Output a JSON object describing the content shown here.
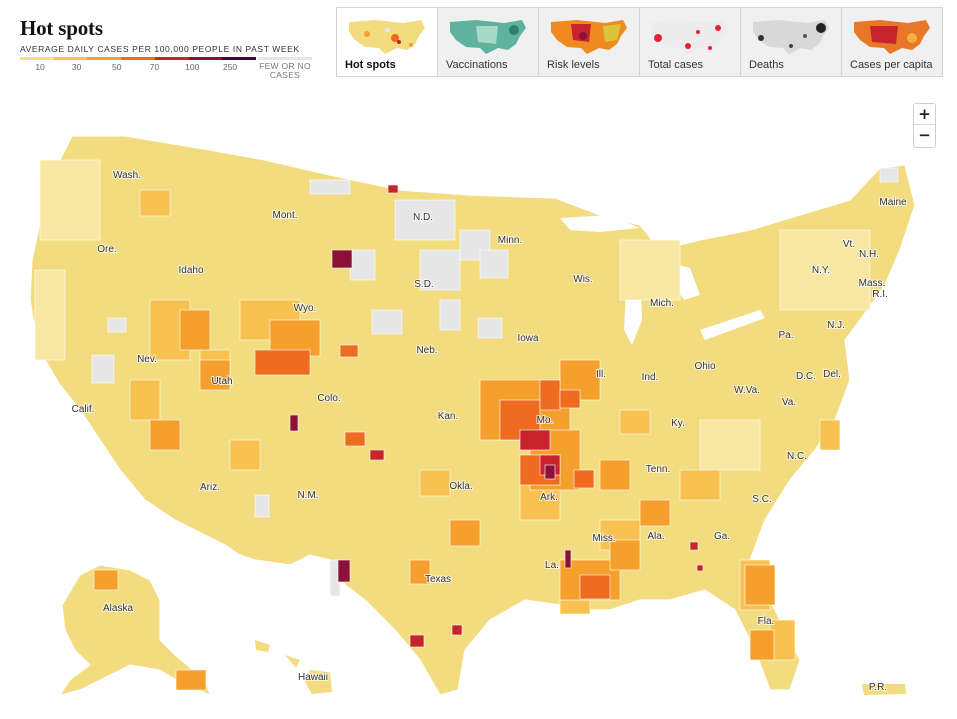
{
  "header": {
    "title": "Hot spots",
    "legend_label": "AVERAGE DAILY CASES PER 100,000 PEOPLE IN PAST WEEK",
    "legend_ticks": [
      "10",
      "30",
      "50",
      "70",
      "100",
      "250"
    ],
    "legend_colors": [
      "#f5e08a",
      "#f8c250",
      "#f59f2c",
      "#ee6b1f",
      "#c8232c",
      "#8b1138",
      "#3d0a3a"
    ],
    "no_cases_label": "FEW OR NO CASES",
    "no_cases_color": "#e6e6e6"
  },
  "tabs": [
    {
      "label": "Hot spots",
      "icon": "hot-spots-map-thumbnail",
      "active": true
    },
    {
      "label": "Vaccinations",
      "icon": "vaccinations-map-thumbnail",
      "active": false
    },
    {
      "label": "Risk levels",
      "icon": "risk-levels-map-thumbnail",
      "active": false
    },
    {
      "label": "Total cases",
      "icon": "total-cases-map-thumbnail",
      "active": false
    },
    {
      "label": "Deaths",
      "icon": "deaths-map-thumbnail",
      "active": false
    },
    {
      "label": "Cases per capita",
      "icon": "cases-per-capita-map-thumbnail",
      "active": false
    }
  ],
  "zoom": {
    "in": "+",
    "out": "−"
  },
  "map": {
    "colors": {
      "land": "#f3db7f",
      "land_light": "#f7e7a3",
      "low": "#f8c250",
      "mid": "#f59f2c",
      "high": "#ee6b1f",
      "very_high": "#c8232c",
      "extreme": "#8b1138",
      "none": "#e6e6e6",
      "water": "#ffffff"
    },
    "labels": [
      {
        "name": "Wash."
      },
      {
        "name": "Ore."
      },
      {
        "name": "Calif."
      },
      {
        "name": "Nev."
      },
      {
        "name": "Idaho"
      },
      {
        "name": "Mont."
      },
      {
        "name": "Wyo."
      },
      {
        "name": "Utah"
      },
      {
        "name": "Ariz."
      },
      {
        "name": "Colo."
      },
      {
        "name": "N.M."
      },
      {
        "name": "N.D."
      },
      {
        "name": "S.D."
      },
      {
        "name": "Neb."
      },
      {
        "name": "Kan."
      },
      {
        "name": "Okla."
      },
      {
        "name": "Texas"
      },
      {
        "name": "Minn."
      },
      {
        "name": "Iowa"
      },
      {
        "name": "Mo."
      },
      {
        "name": "Ark."
      },
      {
        "name": "La."
      },
      {
        "name": "Wis."
      },
      {
        "name": "Ill."
      },
      {
        "name": "Mich."
      },
      {
        "name": "Ind."
      },
      {
        "name": "Ohio"
      },
      {
        "name": "Ky."
      },
      {
        "name": "Tenn."
      },
      {
        "name": "Miss."
      },
      {
        "name": "Ala."
      },
      {
        "name": "Ga."
      },
      {
        "name": "Fla."
      },
      {
        "name": "S.C."
      },
      {
        "name": "N.C."
      },
      {
        "name": "Va."
      },
      {
        "name": "W.Va."
      },
      {
        "name": "Pa."
      },
      {
        "name": "N.Y."
      },
      {
        "name": "Vt."
      },
      {
        "name": "N.H."
      },
      {
        "name": "Maine"
      },
      {
        "name": "Mass."
      },
      {
        "name": "R.I."
      },
      {
        "name": "N.J."
      },
      {
        "name": "Del."
      },
      {
        "name": "D.C."
      },
      {
        "name": "Alaska"
      },
      {
        "name": "Hawaii"
      },
      {
        "name": "P.R."
      }
    ]
  }
}
